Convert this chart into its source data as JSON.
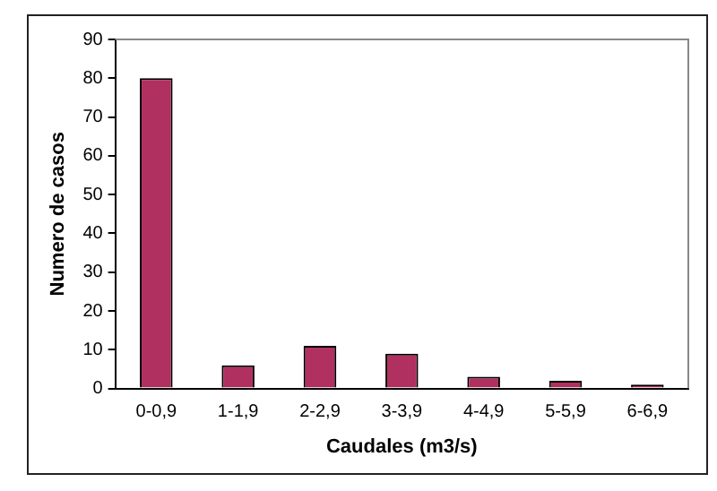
{
  "chart_data": {
    "type": "bar",
    "xlabel": "Caudales (m3/s)",
    "ylabel": "Numero de casos",
    "categories": [
      "0-0,9",
      "1-1,9",
      "2-2,9",
      "3-3,9",
      "4-4,9",
      "5-5,9",
      "6-6,9"
    ],
    "values": [
      80,
      6,
      11,
      9,
      3,
      2,
      1
    ],
    "color": "#b03060",
    "ylim": [
      0,
      90
    ],
    "yticks": [
      0,
      10,
      20,
      30,
      40,
      50,
      60,
      70,
      80,
      90
    ],
    "grid": false,
    "legend": false
  }
}
